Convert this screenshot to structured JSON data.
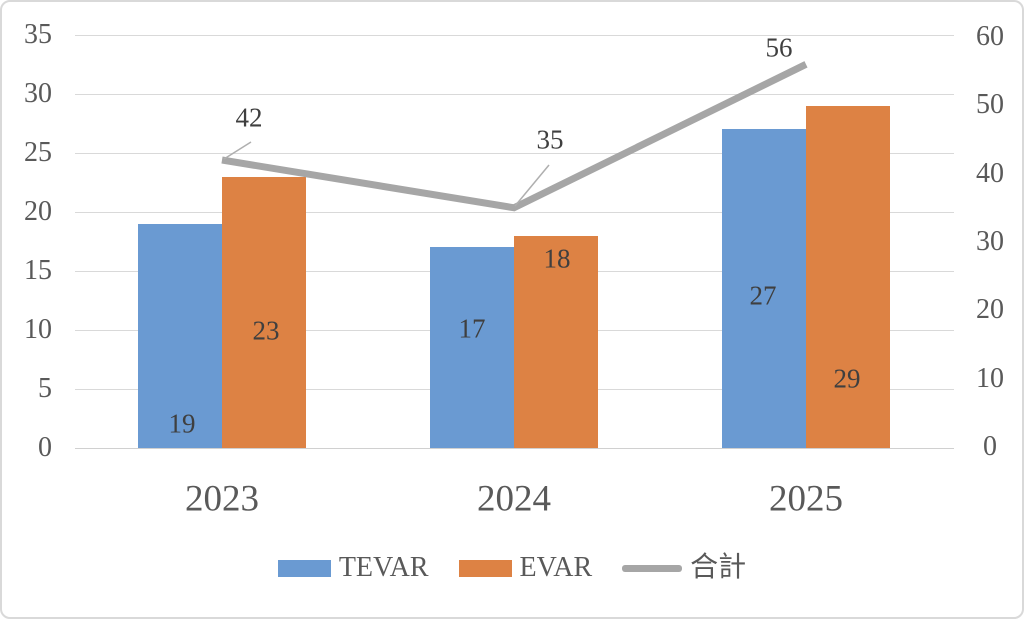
{
  "chart_data": {
    "type": "bar",
    "subtype": "combo-bar-line",
    "title": "",
    "categories": [
      "2023",
      "2024",
      "2025"
    ],
    "series": [
      {
        "name": "TEVAR",
        "type": "bar",
        "axis": "left",
        "color": "#6a9ad2",
        "values": [
          19,
          17,
          27
        ]
      },
      {
        "name": "EVAR",
        "type": "bar",
        "axis": "left",
        "color": "#dd8244",
        "values": [
          23,
          18,
          29
        ]
      },
      {
        "name": "合計",
        "type": "line",
        "axis": "right",
        "color": "#a6a6a6",
        "values": [
          42,
          35,
          56
        ]
      }
    ],
    "left_axis": {
      "min": 0,
      "max": 35,
      "step": 5,
      "tick_labels": [
        "0",
        "5",
        "10",
        "15",
        "20",
        "25",
        "30",
        "35"
      ]
    },
    "right_axis": {
      "min": 0,
      "max": 60,
      "step": 10,
      "tick_labels": [
        "0",
        "10",
        "20",
        "30",
        "40",
        "50",
        "60"
      ]
    },
    "grid": true,
    "legend_position": "bottom",
    "data_labels_shown": true,
    "colors": {
      "gridline": "#d9d9d9",
      "axis_text": "#595959",
      "data_label_text": "#3f3f3f",
      "leader_line": "#afafaf",
      "frame_border": "#d9d9d9",
      "background": "#ffffff"
    }
  }
}
